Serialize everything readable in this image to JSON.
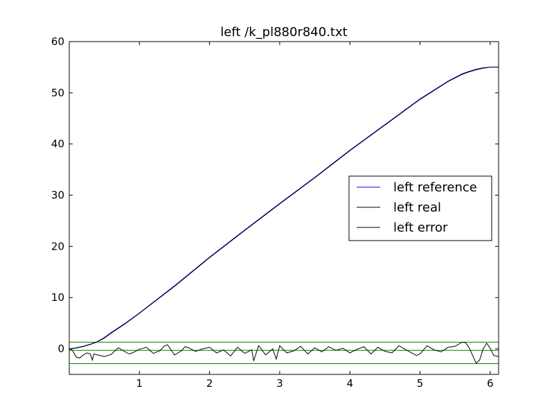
{
  "chart_data": {
    "type": "line",
    "title": "left /k_pl880r840.txt",
    "xlabel": "",
    "ylabel": "",
    "xlim": [
      0.0,
      6.12
    ],
    "ylim": [
      -5,
      60
    ],
    "xticks": [
      1,
      2,
      3,
      4,
      5,
      6
    ],
    "yticks": [
      0,
      10,
      20,
      30,
      40,
      50,
      60
    ],
    "xtick_labels": [
      "1",
      "2",
      "3",
      "4",
      "5",
      "6"
    ],
    "ytick_labels": [
      "0",
      "10",
      "20",
      "30",
      "40",
      "50",
      "60"
    ],
    "grid": false,
    "legend_position": "center-right",
    "series": [
      {
        "name": "left reference",
        "color": "#0000ff",
        "x": [
          0.0,
          0.1,
          0.2,
          0.3,
          0.4,
          0.5,
          0.6,
          0.8,
          1.0,
          1.5,
          2.0,
          2.5,
          3.0,
          3.5,
          4.0,
          4.5,
          5.0,
          5.4,
          5.5,
          5.6,
          5.7,
          5.8,
          5.9,
          6.0,
          6.12
        ],
        "y": [
          0.0,
          0.2,
          0.5,
          0.9,
          1.4,
          2.2,
          3.2,
          5.0,
          7.0,
          12.3,
          17.9,
          23.2,
          28.4,
          33.5,
          38.8,
          43.8,
          48.8,
          52.3,
          53.0,
          53.7,
          54.2,
          54.6,
          54.9,
          55.0,
          55.0
        ]
      },
      {
        "name": "left real",
        "color": "#000000",
        "x": [
          0.0,
          0.1,
          0.2,
          0.3,
          0.4,
          0.5,
          0.6,
          0.8,
          1.0,
          1.5,
          2.0,
          2.5,
          3.0,
          3.5,
          4.0,
          4.5,
          5.0,
          5.4,
          5.5,
          5.6,
          5.7,
          5.8,
          5.9,
          6.0,
          6.12
        ],
        "y": [
          0.0,
          0.15,
          0.45,
          0.85,
          1.35,
          2.1,
          3.1,
          4.9,
          6.95,
          12.2,
          17.8,
          23.1,
          28.3,
          33.4,
          38.7,
          43.7,
          48.7,
          52.2,
          52.9,
          53.6,
          54.1,
          54.5,
          54.8,
          55.0,
          55.0
        ]
      },
      {
        "name": "left error",
        "color": "#000000",
        "x": [
          0.0,
          0.05,
          0.1,
          0.15,
          0.2,
          0.25,
          0.3,
          0.33,
          0.35,
          0.4,
          0.5,
          0.6,
          0.65,
          0.7,
          0.8,
          0.85,
          0.9,
          1.0,
          1.1,
          1.2,
          1.3,
          1.35,
          1.4,
          1.5,
          1.6,
          1.65,
          1.7,
          1.8,
          1.9,
          2.0,
          2.1,
          2.2,
          2.25,
          2.3,
          2.4,
          2.5,
          2.6,
          2.63,
          2.7,
          2.8,
          2.9,
          2.95,
          3.0,
          3.1,
          3.2,
          3.3,
          3.4,
          3.5,
          3.6,
          3.7,
          3.8,
          3.9,
          4.0,
          4.1,
          4.2,
          4.3,
          4.4,
          4.5,
          4.6,
          4.7,
          4.8,
          4.95,
          5.0,
          5.1,
          5.2,
          5.3,
          5.4,
          5.5,
          5.6,
          5.65,
          5.7,
          5.8,
          5.85,
          5.9,
          5.95,
          6.0,
          6.05,
          6.12
        ],
        "y": [
          0.0,
          -0.4,
          -1.6,
          -1.8,
          -1.2,
          -0.8,
          -1.0,
          -2.2,
          -1.0,
          -1.2,
          -1.5,
          -1.1,
          -0.4,
          0.2,
          -0.6,
          -1.0,
          -0.8,
          -0.1,
          0.3,
          -0.9,
          -0.3,
          0.5,
          0.8,
          -1.2,
          -0.4,
          0.4,
          0.2,
          -0.5,
          0.0,
          0.3,
          -0.8,
          -0.2,
          -0.8,
          -1.4,
          0.3,
          -0.9,
          -0.2,
          -2.3,
          0.6,
          -1.2,
          0.0,
          -2.0,
          0.6,
          -0.8,
          -0.4,
          0.5,
          -1.0,
          0.2,
          -0.6,
          0.4,
          -0.3,
          0.1,
          -0.8,
          -0.1,
          0.4,
          -1.0,
          0.3,
          -0.5,
          -0.8,
          0.6,
          -0.2,
          -1.3,
          -1.0,
          0.6,
          -0.2,
          -0.6,
          0.3,
          0.5,
          1.3,
          1.2,
          0.2,
          -2.8,
          -2.2,
          0.0,
          1.1,
          0.1,
          -1.3,
          -1.5
        ]
      }
    ],
    "reference_lines": [
      {
        "y": 1.3,
        "color": "#008000"
      },
      {
        "y": -0.3,
        "color": "#008000"
      },
      {
        "y": -2.9,
        "color": "#008000"
      }
    ]
  }
}
